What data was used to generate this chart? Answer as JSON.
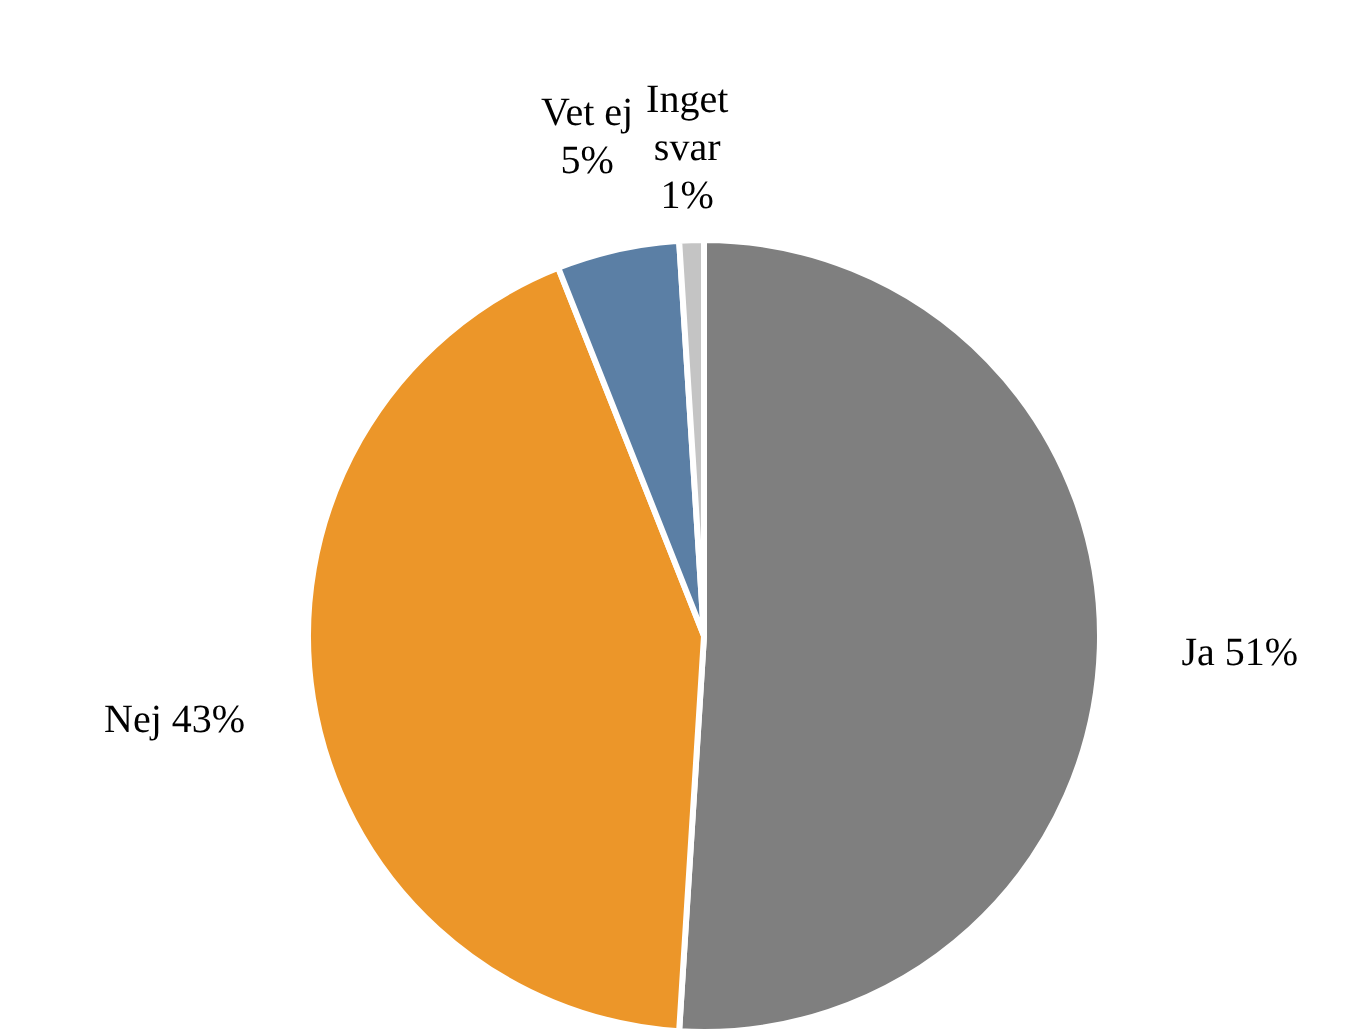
{
  "chart_data": {
    "type": "pie",
    "categories": [
      "Ja",
      "Nej",
      "Vet ej",
      "Inget svar"
    ],
    "values": [
      51,
      43,
      5,
      1
    ],
    "colors": [
      "#7f7f7f",
      "#ec9629",
      "#5b7fa5",
      "#c4c4c4"
    ],
    "value_labels": [
      "51%",
      "43%",
      "5%",
      "1%"
    ]
  }
}
